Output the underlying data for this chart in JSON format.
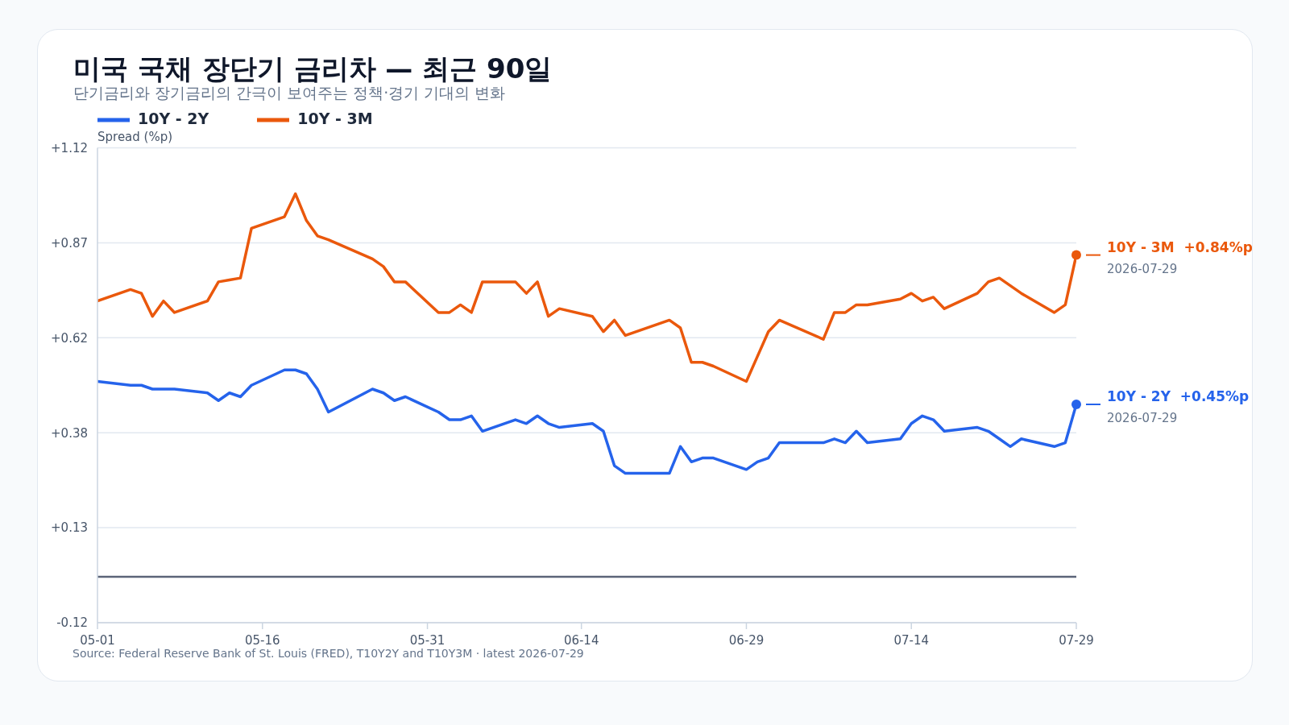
{
  "chart_data": {
    "type": "line",
    "title": "미국 국채 장단기 금리차 — 최근 90일",
    "subtitle": "단기금리와 장기금리의 간극이 보여주는 정책·경기 기대의 변화",
    "ylabel": "Spread (%p)",
    "x": [
      "2026-05-01",
      "2026-05-04",
      "2026-05-05",
      "2026-05-06",
      "2026-05-07",
      "2026-05-08",
      "2026-05-11",
      "2026-05-12",
      "2026-05-13",
      "2026-05-14",
      "2026-05-15",
      "2026-05-18",
      "2026-05-19",
      "2026-05-20",
      "2026-05-21",
      "2026-05-22",
      "2026-05-26",
      "2026-05-27",
      "2026-05-28",
      "2026-05-29",
      "2026-06-01",
      "2026-06-02",
      "2026-06-03",
      "2026-06-04",
      "2026-06-05",
      "2026-06-08",
      "2026-06-09",
      "2026-06-10",
      "2026-06-11",
      "2026-06-12",
      "2026-06-15",
      "2026-06-16",
      "2026-06-17",
      "2026-06-18",
      "2026-06-22",
      "2026-06-23",
      "2026-06-24",
      "2026-06-25",
      "2026-06-26",
      "2026-06-29",
      "2026-06-30",
      "2026-07-01",
      "2026-07-02",
      "2026-07-06",
      "2026-07-07",
      "2026-07-08",
      "2026-07-09",
      "2026-07-10",
      "2026-07-13",
      "2026-07-14",
      "2026-07-15",
      "2026-07-16",
      "2026-07-17",
      "2026-07-20",
      "2026-07-21",
      "2026-07-22",
      "2026-07-23",
      "2026-07-24",
      "2026-07-27",
      "2026-07-28",
      "2026-07-29"
    ],
    "series": [
      {
        "name": "10Y - 2Y",
        "color": "#2563eb",
        "values": [
          0.51,
          0.5,
          0.5,
          0.49,
          0.49,
          0.49,
          0.48,
          0.46,
          0.48,
          0.47,
          0.5,
          0.54,
          0.54,
          0.53,
          0.49,
          0.43,
          0.49,
          0.48,
          0.46,
          0.47,
          0.43,
          0.41,
          0.41,
          0.42,
          0.38,
          0.41,
          0.4,
          0.42,
          0.4,
          0.39,
          0.4,
          0.38,
          0.29,
          0.27,
          0.27,
          0.34,
          0.3,
          0.31,
          0.31,
          0.28,
          0.3,
          0.31,
          0.35,
          0.35,
          0.36,
          0.35,
          0.38,
          0.35,
          0.36,
          0.4,
          0.42,
          0.41,
          0.38,
          0.39,
          0.38,
          0.36,
          0.34,
          0.36,
          0.34,
          0.35,
          0.45
        ]
      },
      {
        "name": "10Y - 3M",
        "color": "#ea580c",
        "values": [
          0.72,
          0.75,
          0.74,
          0.68,
          0.72,
          0.69,
          0.72,
          0.77,
          0.775,
          0.78,
          0.91,
          0.94,
          1.0,
          0.93,
          0.89,
          0.88,
          0.83,
          0.81,
          0.77,
          0.77,
          0.69,
          0.69,
          0.71,
          0.69,
          0.77,
          0.77,
          0.74,
          0.77,
          0.68,
          0.7,
          0.68,
          0.64,
          0.67,
          0.63,
          0.67,
          0.65,
          0.56,
          0.56,
          0.55,
          0.51,
          0.575,
          0.64,
          0.67,
          0.62,
          0.69,
          0.69,
          0.71,
          0.71,
          0.725,
          0.74,
          0.72,
          0.73,
          0.7,
          0.74,
          0.77,
          0.78,
          0.76,
          0.74,
          0.69,
          0.71,
          0.84
        ]
      }
    ],
    "xlim": [
      "2026-05-01",
      "2026-07-29"
    ],
    "xticks": [
      {
        "value": "2026-05-01",
        "label": "05-01"
      },
      {
        "value": "2026-05-16",
        "label": "05-16"
      },
      {
        "value": "2026-05-31",
        "label": "05-31"
      },
      {
        "value": "2026-06-14",
        "label": "06-14"
      },
      {
        "value": "2026-06-29",
        "label": "06-29"
      },
      {
        "value": "2026-07-14",
        "label": "07-14"
      },
      {
        "value": "2026-07-29",
        "label": "07-29"
      }
    ],
    "ylim": [
      -0.12,
      1.12
    ],
    "yticks": [
      {
        "value": -0.12,
        "label": "-0.12"
      },
      {
        "value": 0.128,
        "label": "+0.13"
      },
      {
        "value": 0.376,
        "label": "+0.38"
      },
      {
        "value": 0.624,
        "label": "+0.62"
      },
      {
        "value": 0.872,
        "label": "+0.87"
      },
      {
        "value": 1.12,
        "label": "+1.12"
      }
    ],
    "grid": "y",
    "legend": "top left",
    "marker": "none",
    "line_style": "solid",
    "ref_lines": [
      {
        "axis": "y",
        "value": 0,
        "color": "#5b6478"
      }
    ],
    "annotations": [
      {
        "text": "10Y - 3M  +0.84%p",
        "x": "2026-07-29",
        "y": 0.84
      },
      {
        "text": "2026-07-29",
        "x": "2026-07-29",
        "y": 0.84
      },
      {
        "text": "10Y - 2Y  +0.45%p",
        "x": "2026-07-29",
        "y": 0.45
      },
      {
        "text": "2026-07-29",
        "x": "2026-07-29",
        "y": 0.45
      },
      "Source: Federal Reserve Bank of St. Louis (FRED), T10Y2Y and T10Y3M · latest 2026-07-29"
    ]
  }
}
